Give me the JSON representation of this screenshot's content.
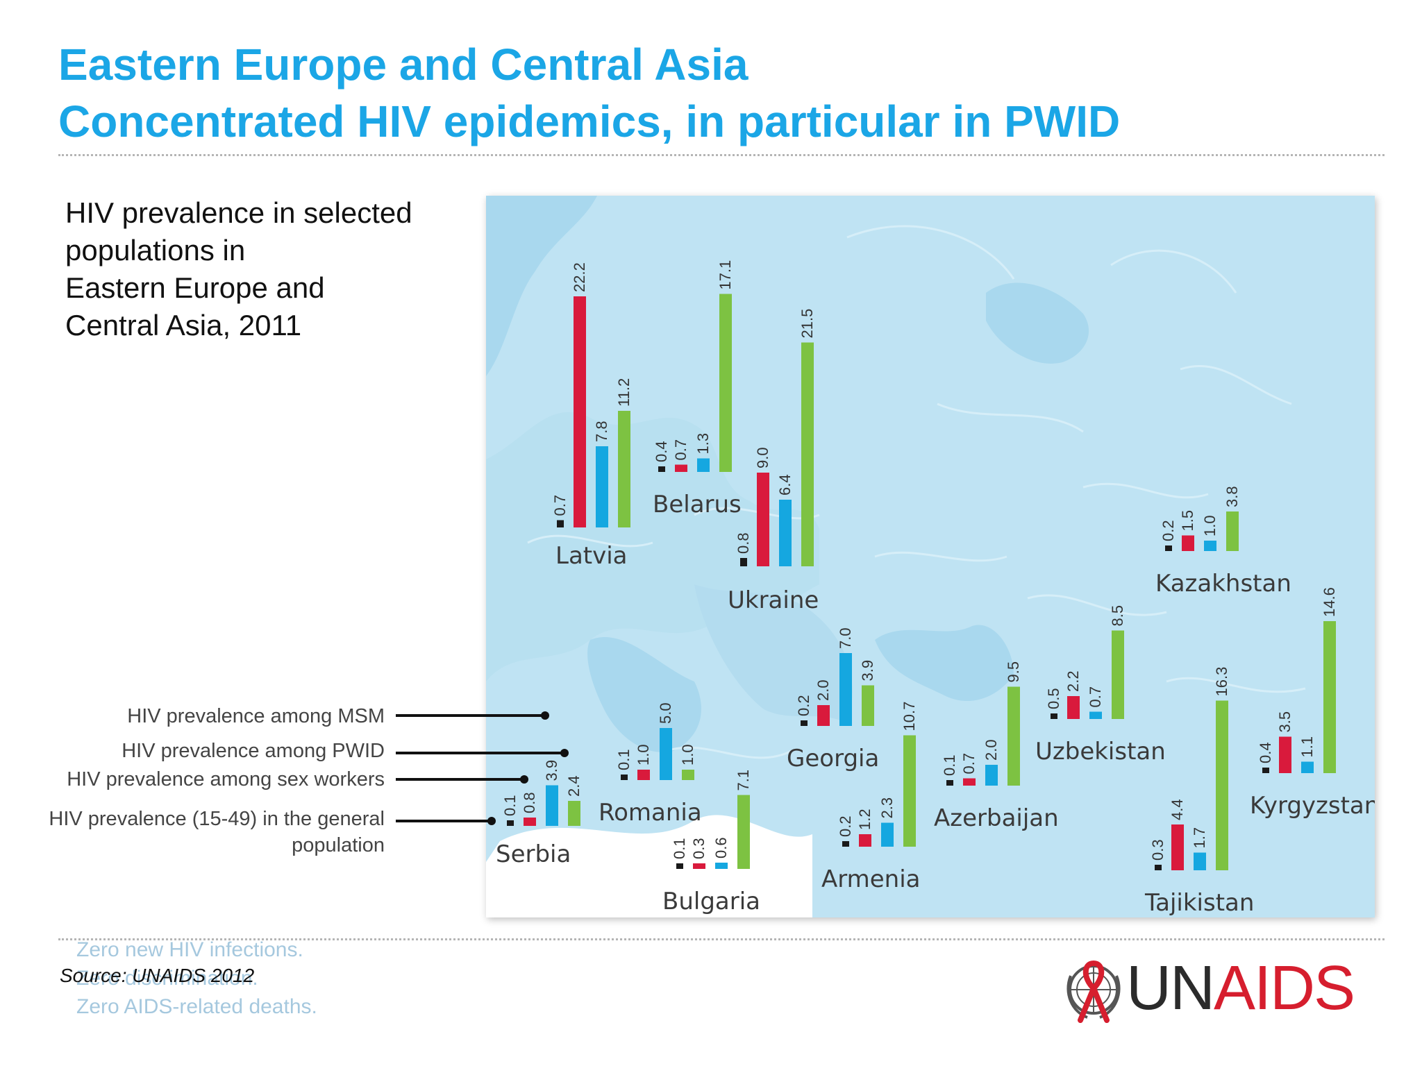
{
  "title": {
    "line1": "Eastern Europe and Central Asia",
    "line2": "Concentrated HIV epidemics, in particular in PWID"
  },
  "subtitle": {
    "line1": "HIV prevalence in selected",
    "line2": " populations in",
    "line3": "Eastern Europe and",
    "line4": "Central Asia, 2011"
  },
  "legend": {
    "msm": "HIV prevalence among  MSM",
    "pwid": "HIV prevalence among  PWID",
    "sex_workers": "HIV prevalence among sex workers",
    "general_line1": "HIV prevalence (15-49) in the general",
    "general_line2": "population"
  },
  "footer": {
    "slogan1": "Zero new HIV infections.",
    "slogan2": "Zero discrimination.",
    "slogan3": "Zero AIDS-related deaths.",
    "source": "Source: UNAIDS 2012"
  },
  "logo": {
    "part1": "UN",
    "part2": "AIDS"
  },
  "chart_data": {
    "type": "bar",
    "series_order": [
      "general",
      "sex_workers",
      "msm",
      "pwid"
    ],
    "colors": {
      "general": "#1a1a1a",
      "sex_workers": "#d91a3c",
      "msm": "#15a7e0",
      "pwid": "#7dc242"
    },
    "countries": [
      {
        "name": "Latvia",
        "values": {
          "general": "0.7",
          "sex_workers": "22.2",
          "msm": "7.8",
          "pwid": "11.2"
        }
      },
      {
        "name": "Belarus",
        "values": {
          "general": "0.4",
          "sex_workers": "0.7",
          "msm": "1.3",
          "pwid": "17.1"
        }
      },
      {
        "name": "Ukraine",
        "values": {
          "general": "0.8",
          "sex_workers": "9.0",
          "msm": "6.4",
          "pwid": "21.5"
        }
      },
      {
        "name": "Serbia",
        "values": {
          "general": "0.1",
          "sex_workers": "0.8",
          "msm": "3.9",
          "pwid": "2.4"
        }
      },
      {
        "name": "Romania",
        "values": {
          "general": "0.1",
          "sex_workers": "1.0",
          "msm": "5.0",
          "pwid": "1.0"
        }
      },
      {
        "name": "Bulgaria",
        "values": {
          "general": "0.1",
          "sex_workers": "0.3",
          "msm": "0.6",
          "pwid": "7.1"
        }
      },
      {
        "name": "Georgia",
        "values": {
          "general": "0.2",
          "sex_workers": "2.0",
          "msm": "7.0",
          "pwid": "3.9"
        }
      },
      {
        "name": "Armenia",
        "values": {
          "general": "0.2",
          "sex_workers": "1.2",
          "msm": "2.3",
          "pwid": "10.7"
        }
      },
      {
        "name": "Azerbaijan",
        "values": {
          "general": "0.1",
          "sex_workers": "0.7",
          "msm": "2.0",
          "pwid": "9.5"
        }
      },
      {
        "name": "Uzbekistan",
        "values": {
          "general": "0.5",
          "sex_workers": "2.2",
          "msm": "0.7",
          "pwid": "8.5"
        }
      },
      {
        "name": "Kazakhstan",
        "values": {
          "general": "0.2",
          "sex_workers": "1.5",
          "msm": "1.0",
          "pwid": "3.8"
        }
      },
      {
        "name": "Tajikistan",
        "values": {
          "general": "0.3",
          "sex_workers": "4.4",
          "msm": "1.7",
          "pwid": "16.3"
        }
      },
      {
        "name": "Kyrgyzstan",
        "values": {
          "general": "0.4",
          "sex_workers": "3.5",
          "msm": "1.1",
          "pwid": "14.6"
        }
      }
    ]
  }
}
